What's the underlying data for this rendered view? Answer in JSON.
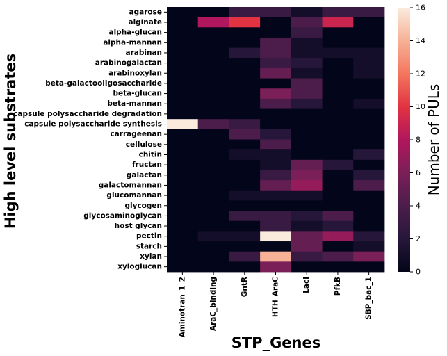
{
  "chart_data": {
    "type": "heatmap",
    "xlabel": "STP_Genes",
    "ylabel": "High level substrates",
    "colorbar_label": "Number of PULs",
    "colorbar_range": [
      0,
      16
    ],
    "colorbar_ticks": [
      0,
      2,
      4,
      6,
      8,
      10,
      12,
      14,
      16
    ],
    "colormap": "rocket",
    "x_categories": [
      "Aminotran_1_2",
      "AraC_binding",
      "GntR",
      "HTH_AraC",
      "LacI",
      "PfkB",
      "SBP_bac_1"
    ],
    "y_categories": [
      "agarose",
      "alginate",
      "alpha-glucan",
      "alpha-mannan",
      "arabinan",
      "arabinogalactan",
      "arabinoxylan",
      "beta-galactooligosaccharide",
      "beta-glucan",
      "beta-mannan",
      "capsule polysaccharide degradation",
      "capsule polysaccharide synthesis",
      "carrageenan",
      "cellulose",
      "chitin",
      "fructan",
      "galactan",
      "galactomannan",
      "glucomannan",
      "glycogen",
      "glycosaminoglycan",
      "host glycan",
      "pectin",
      "starch",
      "xylan",
      "xyloglucan"
    ],
    "values": [
      [
        0,
        0,
        3,
        3,
        1,
        3,
        3
      ],
      [
        0,
        8,
        10,
        0,
        4,
        9,
        0
      ],
      [
        0,
        0,
        0,
        0,
        3,
        0,
        0
      ],
      [
        0,
        0,
        0,
        4,
        1,
        0,
        0
      ],
      [
        0,
        0,
        2,
        4,
        1,
        1,
        1
      ],
      [
        0,
        0,
        0,
        3,
        2,
        0,
        1
      ],
      [
        0,
        0,
        0,
        5,
        1,
        0,
        1
      ],
      [
        0,
        0,
        0,
        0,
        4,
        0,
        0
      ],
      [
        0,
        0,
        0,
        6,
        4,
        0,
        0
      ],
      [
        0,
        0,
        0,
        4,
        2,
        0,
        1
      ],
      [
        0,
        0,
        0,
        0,
        0,
        0,
        0
      ],
      [
        16,
        4,
        3,
        0,
        0,
        0,
        0
      ],
      [
        0,
        0,
        4,
        2,
        0,
        0,
        0
      ],
      [
        0,
        0,
        0,
        4,
        0,
        0,
        0
      ],
      [
        0,
        0,
        1,
        1,
        0,
        0,
        2
      ],
      [
        0,
        0,
        0,
        1,
        5,
        2,
        0
      ],
      [
        0,
        0,
        0,
        3,
        6,
        0,
        2
      ],
      [
        0,
        0,
        0,
        5,
        7,
        0,
        4
      ],
      [
        0,
        0,
        1,
        1,
        1,
        0,
        0
      ],
      [
        0,
        0,
        0,
        0,
        0,
        0,
        0
      ],
      [
        0,
        0,
        3,
        3,
        2,
        4,
        0
      ],
      [
        0,
        0,
        0,
        3,
        1,
        2,
        0
      ],
      [
        0,
        1,
        1,
        16,
        5,
        7,
        2
      ],
      [
        0,
        0,
        0,
        0,
        5,
        0,
        1
      ],
      [
        0,
        0,
        3,
        14,
        3,
        4,
        6
      ],
      [
        0,
        0,
        0,
        6,
        0,
        0,
        0
      ]
    ]
  }
}
